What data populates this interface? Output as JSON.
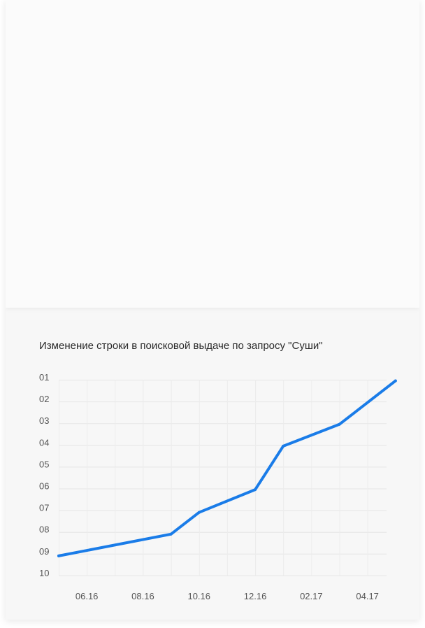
{
  "chart_data": {
    "type": "line",
    "title": "Изменение строки в поисковой выдаче по запросу \"Суши\"",
    "y_ticks": [
      "01",
      "02",
      "03",
      "04",
      "05",
      "06",
      "07",
      "08",
      "09",
      "10"
    ],
    "x_ticks": [
      "06.16",
      "08.16",
      "10.16",
      "12.16",
      "02.17",
      "04.17"
    ],
    "y_inverted": true,
    "ylim": [
      1,
      10
    ],
    "grid": true,
    "line_color": "#1a7ce8",
    "series": [
      {
        "points": [
          {
            "x": "05.16",
            "y": 9.1
          },
          {
            "x": "09.16",
            "y": 8.1
          },
          {
            "x": "10.16",
            "y": 7.1
          },
          {
            "x": "12.16",
            "y": 6.05
          },
          {
            "x": "01.17",
            "y": 4.05
          },
          {
            "x": "03.17",
            "y": 3.05
          },
          {
            "x": "05.17",
            "y": 1.05
          }
        ]
      }
    ]
  }
}
